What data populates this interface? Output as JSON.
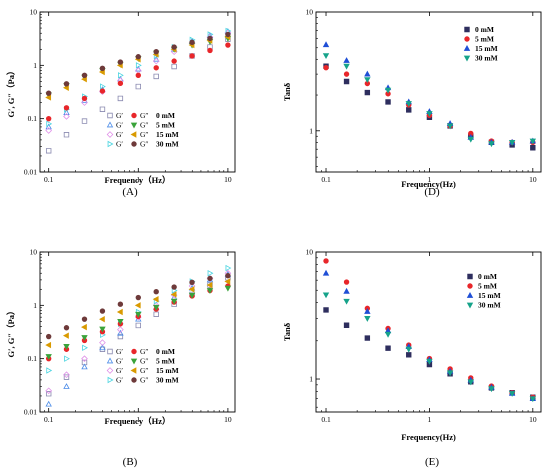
{
  "colors": {
    "c0": "#2e2e5e",
    "c5": "#e8262a",
    "c15": "#1f4fd6",
    "c30": "#16a38a",
    "gp_dim": "#8a8ab0",
    "a5_dark": "#3aa33a",
    "a15_dark": "#d99a00",
    "a30_dark": "#6e3a3a",
    "a5_light": "#4a8be8",
    "a15_light": "#e090e8",
    "a30_light": "#49d4e0"
  },
  "chart_data": [
    {
      "id": "A",
      "panel_label": "(A)",
      "type": "scatter",
      "x_scale": "log",
      "y_scale": "log",
      "xlim": [
        0.08,
        12
      ],
      "ylim": [
        0.01,
        10
      ],
      "xlabel": "Frequency（Hz）",
      "ylabel": "G′, G″（Pa）",
      "x_ticks": [
        "0.1",
        "1",
        "10"
      ],
      "y_ticks": [
        "0.01",
        "0.1",
        "1",
        "10"
      ],
      "legend_title_open": "G′",
      "legend_title_filled": "G″",
      "legend": [
        "0 mM",
        "5 mM",
        "15 mM",
        "30 mM"
      ],
      "x": [
        0.1,
        0.158,
        0.251,
        0.398,
        0.631,
        1,
        1.585,
        2.512,
        3.981,
        6.31,
        10
      ],
      "series": [
        {
          "name": "G′ 0 mM",
          "kind": "open",
          "shape": "square",
          "values": [
            0.025,
            0.05,
            0.09,
            0.15,
            0.24,
            0.4,
            0.62,
            0.95,
            1.5,
            2.2,
            3.1
          ]
        },
        {
          "name": "G′ 5 mM",
          "kind": "open",
          "shape": "triangle",
          "values": [
            0.07,
            0.13,
            0.22,
            0.35,
            0.55,
            0.85,
            1.3,
            2.0,
            2.8,
            3.6,
            4.3
          ]
        },
        {
          "name": "G′ 15 mM",
          "kind": "open",
          "shape": "diamond",
          "values": [
            0.06,
            0.11,
            0.2,
            0.32,
            0.52,
            0.8,
            1.2,
            1.8,
            2.6,
            3.4,
            4.1
          ]
        },
        {
          "name": "G′ 30 mM",
          "kind": "open",
          "shape": "tri-right",
          "values": [
            0.08,
            0.15,
            0.26,
            0.4,
            0.65,
            1.0,
            1.5,
            2.2,
            3.0,
            3.8,
            4.4
          ]
        },
        {
          "name": "G″ 0 mM",
          "kind": "filled",
          "shape": "circle",
          "values": [
            0.1,
            0.16,
            0.24,
            0.33,
            0.46,
            0.65,
            0.9,
            1.2,
            1.5,
            1.9,
            2.4
          ]
        },
        {
          "name": "G″ 5 mM",
          "kind": "filled",
          "shape": "tri-down",
          "values": [
            0.28,
            0.42,
            0.6,
            0.8,
            1.05,
            1.35,
            1.7,
            2.0,
            2.4,
            2.8,
            3.2
          ]
        },
        {
          "name": "G″ 15 mM",
          "kind": "filled",
          "shape": "tri-left",
          "values": [
            0.25,
            0.38,
            0.55,
            0.75,
            1.0,
            1.3,
            1.6,
            2.0,
            2.4,
            2.9,
            3.4
          ]
        },
        {
          "name": "G″ 30 mM",
          "kind": "filled",
          "shape": "circle",
          "values": [
            0.3,
            0.45,
            0.65,
            0.88,
            1.15,
            1.45,
            1.8,
            2.2,
            2.7,
            3.2,
            3.8
          ]
        }
      ]
    },
    {
      "id": "B",
      "panel_label": "(B)",
      "type": "scatter",
      "x_scale": "log",
      "y_scale": "log",
      "xlim": [
        0.08,
        12
      ],
      "ylim": [
        0.01,
        10
      ],
      "xlabel": "Frequency（Hz）",
      "ylabel": "G′, G″（Pa）",
      "x_ticks": [
        "0.1",
        "1",
        "10"
      ],
      "y_ticks": [
        "0.01",
        "0.1",
        "1",
        "10"
      ],
      "legend_title_open": "G′",
      "legend_title_filled": "G″",
      "legend": [
        "0 mM",
        "5 mM",
        "15 mM",
        "30 mM"
      ],
      "x": [
        0.1,
        0.158,
        0.251,
        0.398,
        0.631,
        1,
        1.585,
        2.512,
        3.981,
        6.31,
        10
      ],
      "series": [
        {
          "name": "G′ 0 mM",
          "kind": "open",
          "shape": "square",
          "values": [
            0.022,
            0.045,
            0.085,
            0.15,
            0.26,
            0.42,
            0.68,
            1.05,
            1.6,
            2.4,
            3.3
          ]
        },
        {
          "name": "G′ 5 mM",
          "kind": "open",
          "shape": "triangle",
          "values": [
            0.014,
            0.03,
            0.07,
            0.16,
            0.3,
            0.55,
            0.9,
            1.4,
            2.1,
            3.0,
            3.8
          ]
        },
        {
          "name": "G′ 15 mM",
          "kind": "open",
          "shape": "diamond",
          "values": [
            0.025,
            0.05,
            0.1,
            0.2,
            0.35,
            0.6,
            1.0,
            1.55,
            2.3,
            3.2,
            4.0
          ]
        },
        {
          "name": "G′ 30 mM",
          "kind": "open",
          "shape": "tri-right",
          "values": [
            0.06,
            0.1,
            0.16,
            0.28,
            0.45,
            0.75,
            1.2,
            1.9,
            2.8,
            4.0,
            5.0
          ]
        },
        {
          "name": "G″ 0 mM",
          "kind": "filled",
          "shape": "circle",
          "values": [
            0.1,
            0.15,
            0.22,
            0.32,
            0.45,
            0.62,
            0.85,
            1.15,
            1.5,
            1.9,
            2.3
          ]
        },
        {
          "name": "G″ 5 mM",
          "kind": "filled",
          "shape": "tri-down",
          "values": [
            0.11,
            0.17,
            0.25,
            0.36,
            0.5,
            0.68,
            0.92,
            1.2,
            1.55,
            1.9,
            2.1
          ]
        },
        {
          "name": "G″ 15 mM",
          "kind": "filled",
          "shape": "tri-left",
          "values": [
            0.18,
            0.27,
            0.39,
            0.55,
            0.75,
            1.0,
            1.3,
            1.6,
            2.0,
            2.4,
            2.8
          ]
        },
        {
          "name": "G″ 30 mM",
          "kind": "filled",
          "shape": "circle",
          "values": [
            0.26,
            0.38,
            0.55,
            0.78,
            1.05,
            1.4,
            1.8,
            2.2,
            2.7,
            3.2,
            3.6
          ]
        }
      ]
    },
    {
      "id": "D",
      "panel_label": "(D)",
      "type": "scatter",
      "x_scale": "log",
      "y_scale": "log",
      "xlim": [
        0.08,
        12
      ],
      "ylim": [
        0.45,
        10
      ],
      "xlabel": "Frequency(Hz)",
      "ylabel": "Tanδ",
      "x_ticks": [
        "0.1",
        "1",
        "10"
      ],
      "y_ticks": [
        "1",
        "10"
      ],
      "legend": [
        "0 mM",
        "5 mM",
        "15 mM",
        "30 mM"
      ],
      "x": [
        0.1,
        0.158,
        0.251,
        0.398,
        0.631,
        1,
        1.585,
        2.512,
        3.981,
        6.31,
        10
      ],
      "series": [
        {
          "name": "0 mM",
          "shape": "square",
          "values": [
            3.5,
            2.6,
            2.1,
            1.75,
            1.5,
            1.3,
            1.1,
            0.9,
            0.8,
            0.76,
            0.72
          ]
        },
        {
          "name": "5 mM",
          "shape": "circle",
          "values": [
            3.4,
            3.0,
            2.5,
            2.05,
            1.65,
            1.35,
            1.1,
            0.95,
            0.82,
            0.8,
            0.8
          ]
        },
        {
          "name": "15 mM",
          "shape": "triangle",
          "values": [
            5.3,
            3.9,
            3.0,
            2.3,
            1.75,
            1.45,
            1.15,
            0.88,
            0.8,
            0.8,
            0.82
          ]
        },
        {
          "name": "30 mM",
          "shape": "tri-down",
          "values": [
            4.3,
            3.5,
            2.7,
            2.2,
            1.7,
            1.4,
            1.1,
            0.85,
            0.78,
            0.8,
            0.82
          ]
        }
      ]
    },
    {
      "id": "E",
      "panel_label": "(E)",
      "type": "scatter",
      "x_scale": "log",
      "y_scale": "log",
      "xlim": [
        0.08,
        12
      ],
      "ylim": [
        0.55,
        10
      ],
      "xlabel": "Frequency(Hz)",
      "ylabel": "Tanδ",
      "x_ticks": [
        "0.1",
        "1",
        "10"
      ],
      "y_ticks": [
        "1",
        "10"
      ],
      "legend": [
        "0 mM",
        "5 mM",
        "15 mM",
        "30 mM"
      ],
      "x": [
        0.1,
        0.158,
        0.251,
        0.398,
        0.631,
        1,
        1.585,
        2.512,
        3.981,
        6.31,
        10
      ],
      "series": [
        {
          "name": "0 mM",
          "shape": "square",
          "values": [
            3.5,
            2.65,
            2.1,
            1.75,
            1.55,
            1.3,
            1.1,
            0.95,
            0.85,
            0.78,
            0.72
          ]
        },
        {
          "name": "5 mM",
          "shape": "circle",
          "values": [
            8.5,
            5.8,
            3.6,
            2.5,
            1.85,
            1.45,
            1.2,
            1.02,
            0.88,
            0.78,
            0.72
          ]
        },
        {
          "name": "15 mM",
          "shape": "triangle",
          "values": [
            6.8,
            4.9,
            3.4,
            2.4,
            1.8,
            1.42,
            1.15,
            0.98,
            0.86,
            0.77,
            0.7
          ]
        },
        {
          "name": "30 mM",
          "shape": "tri-down",
          "values": [
            4.6,
            4.1,
            3.0,
            2.25,
            1.72,
            1.38,
            1.12,
            0.95,
            0.84,
            0.77,
            0.7
          ]
        }
      ]
    }
  ]
}
